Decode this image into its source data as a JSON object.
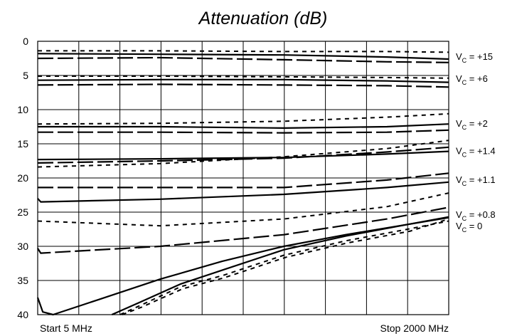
{
  "chart_data": {
    "type": "line",
    "title": "Attenuation (dB)",
    "x_start_label": "Start 5 MHz",
    "x_stop_label": "Stop 2000 MHz",
    "x_range": [
      5,
      2000
    ],
    "x_units": "MHz",
    "ylim": [
      0,
      40
    ],
    "y_inverted": true,
    "y_ticks": [
      0,
      5,
      10,
      15,
      20,
      25,
      30,
      35,
      40
    ],
    "x_gridlines": 10,
    "grid": true,
    "legend": "right, one label per control-voltage curve group",
    "colors": {
      "line": "#000000",
      "grid": "#000000"
    },
    "groups": [
      {
        "label_base": "V",
        "label_sub": "C",
        "label_value": " = +15",
        "label_y": 2.2,
        "series": [
          {
            "style": "solid",
            "x": [
              5,
              600,
              1200,
              1700,
              2000
            ],
            "y": [
              1.8,
              1.9,
              2.0,
              2.3,
              2.6
            ]
          },
          {
            "style": "dashed",
            "x": [
              5,
              600,
              1200,
              1700,
              2000
            ],
            "y": [
              2.5,
              2.4,
              2.7,
              3.0,
              3.1
            ]
          },
          {
            "style": "dotted",
            "x": [
              5,
              600,
              1200,
              1700,
              2000
            ],
            "y": [
              1.4,
              1.4,
              1.5,
              1.5,
              1.6
            ]
          }
        ]
      },
      {
        "label_base": "V",
        "label_sub": "C",
        "label_value": " = +6",
        "label_y": 5.4,
        "series": [
          {
            "style": "solid",
            "x": [
              5,
              600,
              1200,
              1700,
              2000
            ],
            "y": [
              5.7,
              5.6,
              5.6,
              5.8,
              6.0
            ]
          },
          {
            "style": "dashed",
            "x": [
              5,
              600,
              1200,
              1700,
              2000
            ],
            "y": [
              6.4,
              6.3,
              6.4,
              6.5,
              6.7
            ]
          },
          {
            "style": "dotted",
            "x": [
              5,
              600,
              1200,
              1700,
              2000
            ],
            "y": [
              5.1,
              5.1,
              5.2,
              5.3,
              5.4
            ]
          }
        ]
      },
      {
        "label_base": "V",
        "label_sub": "C",
        "label_value": " = +2",
        "label_y": 12.0,
        "series": [
          {
            "style": "solid",
            "x": [
              5,
              600,
              1200,
              1700,
              2000
            ],
            "y": [
              12.5,
              12.5,
              12.7,
              12.5,
              12.1
            ]
          },
          {
            "style": "dashed",
            "x": [
              5,
              600,
              1200,
              1700,
              2000
            ],
            "y": [
              13.3,
              13.3,
              13.4,
              13.3,
              13.0
            ]
          },
          {
            "style": "dotted",
            "x": [
              5,
              600,
              1200,
              1700,
              2000
            ],
            "y": [
              12.1,
              12.0,
              11.7,
              11.1,
              10.6
            ]
          }
        ]
      },
      {
        "label_base": "V",
        "label_sub": "C",
        "label_value": " = +1.4",
        "label_y": 16.0,
        "series": [
          {
            "style": "solid",
            "x": [
              5,
              600,
              1200,
              1700,
              2000
            ],
            "y": [
              17.3,
              17.2,
              17.0,
              16.5,
              16.1
            ]
          },
          {
            "style": "dashed",
            "x": [
              5,
              600,
              1200,
              1700,
              2000
            ],
            "y": [
              17.8,
              17.5,
              17.1,
              16.2,
              15.5
            ]
          },
          {
            "style": "dotted",
            "x": [
              5,
              600,
              1200,
              1700,
              2000
            ],
            "y": [
              18.4,
              17.9,
              16.9,
              15.7,
              14.5
            ]
          }
        ]
      },
      {
        "label_base": "V",
        "label_sub": "C",
        "label_value": " = +1.1",
        "label_y": 20.2,
        "series": [
          {
            "style": "solid",
            "x": [
              5,
              20,
              600,
              1200,
              1700,
              2000
            ],
            "y": [
              23.0,
              23.5,
              23.1,
              22.4,
              21.4,
              20.6
            ]
          },
          {
            "style": "dashed",
            "x": [
              5,
              600,
              1200,
              1700,
              2000
            ],
            "y": [
              21.4,
              21.4,
              21.4,
              20.3,
              19.3
            ]
          },
          {
            "style": "dotted",
            "x": [
              5,
              600,
              1200,
              1700,
              2000
            ],
            "y": [
              26.3,
              27.0,
              26.0,
              24.2,
              22.2
            ]
          }
        ]
      },
      {
        "label_base": "V",
        "label_sub": "C",
        "label_value": " = +0.8",
        "label_y": 25.3,
        "series": [
          {
            "style": "dashed",
            "x": [
              5,
              20,
              600,
              1200,
              1700,
              2000
            ],
            "y": [
              30.3,
              31.0,
              30.0,
              28.3,
              26.0,
              24.3
            ]
          }
        ]
      },
      {
        "label_base": "V",
        "label_sub": "C",
        "label_value": " = 0",
        "label_y": 27.0,
        "series": [
          {
            "style": "solid",
            "x": [
              5,
              30,
              80,
              300,
              600,
              900,
              1200,
              1500,
              1800,
              2000
            ],
            "y": [
              37.5,
              39.6,
              40.0,
              37.8,
              34.8,
              32.2,
              30.0,
              28.3,
              26.8,
              25.7
            ]
          },
          {
            "style": "solid",
            "x": [
              365,
              500,
              700,
              900,
              1200,
              1500,
              1800,
              2000
            ],
            "y": [
              40.0,
              38.2,
              35.5,
              33.5,
              30.5,
              28.5,
              26.8,
              25.8
            ]
          },
          {
            "style": "dotted",
            "x": [
              405,
              500,
              700,
              900,
              1200,
              1500,
              1800,
              2000
            ],
            "y": [
              40.0,
              38.7,
              35.9,
              34.3,
              31.3,
              29.2,
              27.5,
              26.3
            ]
          },
          {
            "style": "dotted",
            "x": [
              415,
              510,
              710,
              910,
              1210,
              1510,
              1810,
              2000
            ],
            "y": [
              40.0,
              38.9,
              36.2,
              34.6,
              31.6,
              29.5,
              27.8,
              26.0
            ]
          }
        ]
      }
    ]
  }
}
